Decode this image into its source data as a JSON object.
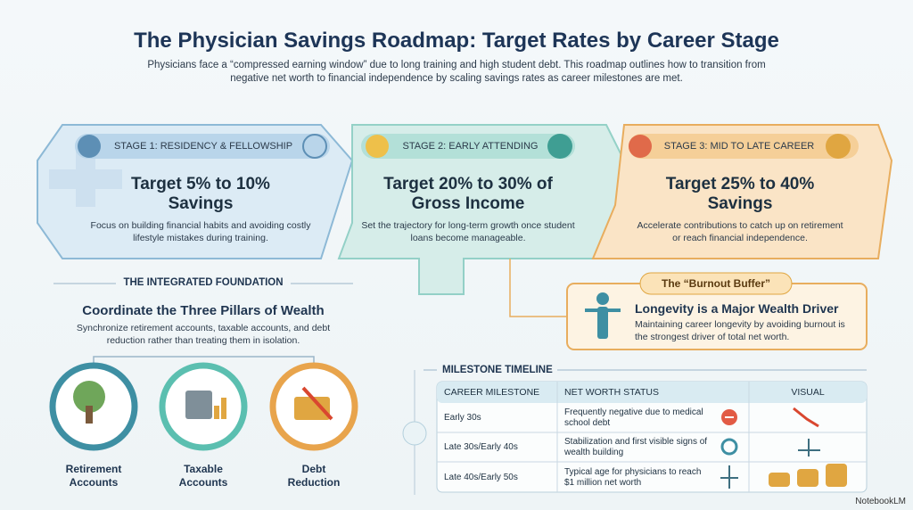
{
  "header": {
    "title": "The Physician Savings Roadmap: Target Rates by Career Stage",
    "subtitle": "Physicians face a “compressed earning window” due to long training and high student debt. This roadmap outlines how to transition from negative net worth to financial independence by scaling savings rates as career milestones are met."
  },
  "stages": [
    {
      "label": "STAGE 1: RESIDENCY & FELLOWSHIP",
      "target": "Target 5% to 10% Savings",
      "description": "Focus on building financial habits and avoiding costly lifestyle mistakes during training."
    },
    {
      "label": "STAGE 2: EARLY ATTENDING",
      "target": "Target 20% to 30% of Gross Income",
      "description": "Set the trajectory for long-term growth once student loans become manageable."
    },
    {
      "label": "STAGE 3: MID TO LATE CAREER",
      "target": "Target 25% to 40% Savings",
      "description": "Accelerate contributions to catch up on retirement or reach financial independence."
    }
  ],
  "foundation": {
    "heading": "THE INTEGRATED FOUNDATION",
    "title": "Coordinate the Three Pillars of Wealth",
    "description": "Synchronize retirement accounts, taxable accounts, and debt reduction rather than treating them in isolation.",
    "pillars": [
      "Retirement Accounts",
      "Taxable Accounts",
      "Debt Reduction"
    ]
  },
  "burnout": {
    "tag": "The “Burnout Buffer”",
    "title": "Longevity is a Major Wealth Driver",
    "description": "Maintaining career longevity by avoiding burnout is the strongest driver of total net worth."
  },
  "timeline": {
    "heading": "MILESTONE TIMELINE",
    "columns": [
      "CAREER MILESTONE",
      "NET WORTH STATUS",
      "VISUAL"
    ],
    "rows": [
      [
        "Early 30s",
        "Frequently negative due to medical school debt"
      ],
      [
        "Late 30s/Early 40s",
        "Stabilization and first visible signs of wealth building"
      ],
      [
        "Late 40s/Early 50s",
        "Typical age for physicians to reach $1 million net worth"
      ]
    ]
  },
  "footer": {
    "brand": "NotebookLM"
  }
}
